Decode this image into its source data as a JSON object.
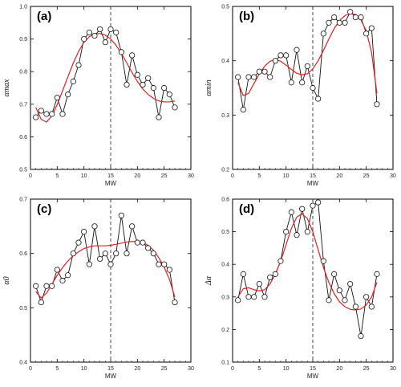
{
  "chart_data": [
    {
      "type": "line",
      "panel_label": "(a)",
      "xlabel": "MW",
      "ylabel": "αmax",
      "xlim": [
        0,
        30
      ],
      "ylim": [
        0.5,
        1.0
      ],
      "xticks": [
        "0",
        "5",
        "10",
        "15",
        "20",
        "25",
        "30"
      ],
      "yticks": [
        "0.5",
        "0.6",
        "0.7",
        "0.8",
        "0.9",
        "1.0"
      ],
      "marker_line": 15,
      "x": [
        1,
        2,
        3,
        4,
        5,
        6,
        7,
        8,
        9,
        10,
        11,
        12,
        13,
        14,
        15,
        16,
        17,
        18,
        19,
        20,
        21,
        22,
        23,
        24,
        25,
        26,
        27
      ],
      "series": [
        {
          "values": [
            0.66,
            0.68,
            0.67,
            0.67,
            0.72,
            0.67,
            0.73,
            0.77,
            0.82,
            0.9,
            0.92,
            0.91,
            0.93,
            0.89,
            0.93,
            0.92,
            0.86,
            0.76,
            0.85,
            0.79,
            0.76,
            0.78,
            0.75,
            0.66,
            0.75,
            0.73,
            0.69
          ]
        },
        {
          "values": [
            0.69,
            0.654,
            0.645,
            0.664,
            0.699,
            0.741,
            0.784,
            0.826,
            0.862,
            0.89,
            0.907,
            0.915,
            0.917,
            0.912,
            0.9,
            0.881,
            0.856,
            0.827,
            0.797,
            0.77,
            0.747,
            0.73,
            0.718,
            0.71,
            0.707,
            0.707,
            0.71
          ],
          "color": "#e02020"
        }
      ]
    },
    {
      "type": "line",
      "panel_label": "(b)",
      "xlabel": "MW",
      "ylabel": "αmin",
      "xlim": [
        0,
        30
      ],
      "ylim": [
        0.2,
        0.5
      ],
      "xticks": [
        "0",
        "5",
        "10",
        "15",
        "20",
        "25",
        "30"
      ],
      "yticks": [
        "0.2",
        "0.3",
        "0.4",
        "0.5"
      ],
      "marker_line": 15,
      "x": [
        1,
        2,
        3,
        4,
        5,
        6,
        7,
        8,
        9,
        10,
        11,
        12,
        13,
        14,
        15,
        16,
        17,
        18,
        19,
        20,
        21,
        22,
        23,
        24,
        25,
        26,
        27
      ],
      "series": [
        {
          "values": [
            0.37,
            0.31,
            0.37,
            0.37,
            0.38,
            0.38,
            0.37,
            0.4,
            0.41,
            0.41,
            0.36,
            0.42,
            0.36,
            0.39,
            0.35,
            0.33,
            0.45,
            0.47,
            0.48,
            0.47,
            0.47,
            0.49,
            0.48,
            0.48,
            0.45,
            0.46,
            0.32
          ]
        },
        {
          "values": [
            0.36,
            0.336,
            0.34,
            0.358,
            0.376,
            0.39,
            0.399,
            0.402,
            0.399,
            0.392,
            0.384,
            0.377,
            0.374,
            0.376,
            0.385,
            0.4,
            0.419,
            0.44,
            0.459,
            0.474,
            0.483,
            0.487,
            0.485,
            0.475,
            0.455,
            0.415,
            0.34
          ],
          "color": "#e02020"
        }
      ]
    },
    {
      "type": "line",
      "panel_label": "(c)",
      "xlabel": "MW",
      "ylabel": "α0",
      "xlim": [
        0,
        30
      ],
      "ylim": [
        0.4,
        0.7
      ],
      "xticks": [
        "0",
        "5",
        "10",
        "15",
        "20",
        "25",
        "30"
      ],
      "yticks": [
        "0.4",
        "0.5",
        "0.6",
        "0.7"
      ],
      "marker_line": 15,
      "x": [
        1,
        2,
        3,
        4,
        5,
        6,
        7,
        8,
        9,
        10,
        11,
        12,
        13,
        14,
        15,
        16,
        17,
        18,
        19,
        20,
        21,
        22,
        23,
        24,
        25,
        26,
        27
      ],
      "series": [
        {
          "values": [
            0.54,
            0.51,
            0.54,
            0.54,
            0.57,
            0.55,
            0.56,
            0.6,
            0.62,
            0.64,
            0.58,
            0.65,
            0.59,
            0.6,
            0.58,
            0.6,
            0.67,
            0.6,
            0.65,
            0.62,
            0.62,
            0.61,
            0.6,
            0.58,
            0.58,
            0.57,
            0.51
          ]
        },
        {
          "values": [
            0.53,
            0.518,
            0.527,
            0.543,
            0.56,
            0.574,
            0.586,
            0.596,
            0.603,
            0.609,
            0.612,
            0.614,
            0.614,
            0.614,
            0.615,
            0.617,
            0.619,
            0.621,
            0.622,
            0.622,
            0.62,
            0.615,
            0.606,
            0.592,
            0.575,
            0.552,
            0.52
          ],
          "color": "#e02020"
        }
      ]
    },
    {
      "type": "line",
      "panel_label": "(d)",
      "xlabel": "MW",
      "ylabel": "Δα",
      "xlim": [
        0,
        30
      ],
      "ylim": [
        0.1,
        0.6
      ],
      "xticks": [
        "0",
        "5",
        "10",
        "15",
        "20",
        "25",
        "30"
      ],
      "yticks": [
        "0.1",
        "0.2",
        "0.3",
        "0.4",
        "0.5",
        "0.6"
      ],
      "marker_line": 15,
      "x": [
        1,
        2,
        3,
        4,
        5,
        6,
        7,
        8,
        9,
        10,
        11,
        12,
        13,
        14,
        15,
        16,
        17,
        18,
        19,
        20,
        21,
        22,
        23,
        24,
        25,
        26,
        27
      ],
      "series": [
        {
          "values": [
            0.29,
            0.37,
            0.3,
            0.3,
            0.34,
            0.3,
            0.36,
            0.37,
            0.41,
            0.5,
            0.56,
            0.49,
            0.57,
            0.5,
            0.58,
            0.59,
            0.41,
            0.29,
            0.37,
            0.32,
            0.29,
            0.34,
            0.27,
            0.18,
            0.3,
            0.27,
            0.37
          ]
        },
        {
          "values": [
            0.3,
            0.325,
            0.328,
            0.322,
            0.318,
            0.322,
            0.34,
            0.37,
            0.41,
            0.46,
            0.51,
            0.545,
            0.555,
            0.54,
            0.5,
            0.445,
            0.39,
            0.345,
            0.31,
            0.285,
            0.27,
            0.262,
            0.26,
            0.263,
            0.275,
            0.3,
            0.345
          ],
          "color": "#e02020"
        }
      ]
    }
  ]
}
